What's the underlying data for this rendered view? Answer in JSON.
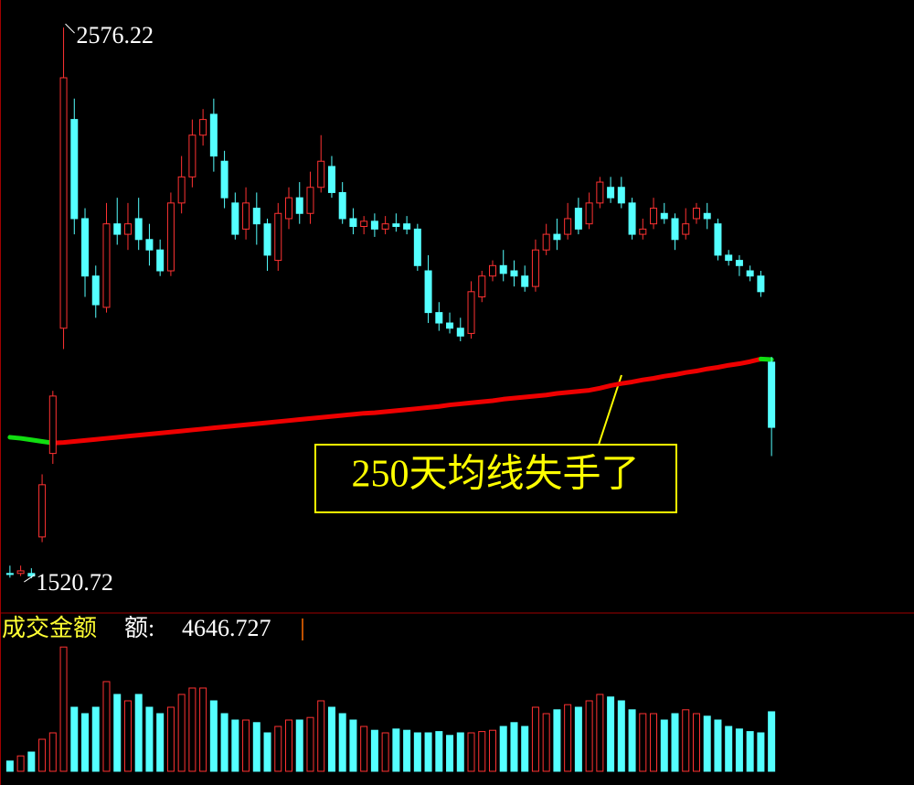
{
  "chart_data": {
    "type": "candlestick",
    "ylim": [
      1463,
      2629
    ],
    "up_color": "#ff3232",
    "down_color": "#54ffff",
    "open": [
      1530,
      1530,
      1530,
      1600,
      1760,
      2000,
      2400,
      2210,
      2100,
      2040,
      2200,
      2180,
      2210,
      2170,
      2150,
      2110,
      2240,
      2290,
      2370,
      2410,
      2320,
      2240,
      2190,
      2230,
      2200,
      2130,
      2210,
      2250,
      2220,
      2270,
      2310,
      2260,
      2210,
      2195,
      2205,
      2190,
      2200,
      2200,
      2190,
      2110,
      2030,
      2010,
      2000,
      1990,
      2060,
      2100,
      2120,
      2110,
      2100,
      2080,
      2150,
      2180,
      2180,
      2230,
      2200,
      2240,
      2270,
      2270,
      2240,
      2180,
      2200,
      2220,
      2210,
      2180,
      2210,
      2220,
      2200,
      2140,
      2130,
      2110,
      2100,
      1935
    ],
    "high": [
      1545,
      1545,
      1540,
      1720,
      1880,
      2576.22,
      2440,
      2230,
      2120,
      2240,
      2250,
      2240,
      2250,
      2200,
      2170,
      2260,
      2330,
      2400,
      2420,
      2440,
      2340,
      2260,
      2270,
      2260,
      2210,
      2240,
      2270,
      2280,
      2300,
      2370,
      2330,
      2280,
      2230,
      2215,
      2220,
      2215,
      2220,
      2215,
      2200,
      2140,
      2050,
      2030,
      2020,
      2090,
      2110,
      2130,
      2150,
      2130,
      2120,
      2170,
      2200,
      2210,
      2240,
      2250,
      2260,
      2290,
      2290,
      2290,
      2250,
      2210,
      2250,
      2240,
      2220,
      2230,
      2240,
      2240,
      2210,
      2150,
      2140,
      2120,
      2110,
      1945
    ],
    "low": [
      1522,
      1525,
      1520.72,
      1590,
      1740,
      1960,
      2180,
      2060,
      2020,
      2030,
      2160,
      2150,
      2150,
      2120,
      2100,
      2100,
      2220,
      2270,
      2350,
      2300,
      2230,
      2170,
      2170,
      2160,
      2110,
      2110,
      2190,
      2200,
      2200,
      2260,
      2250,
      2200,
      2180,
      2180,
      2175,
      2180,
      2185,
      2180,
      2110,
      2010,
      1995,
      1990,
      1975,
      1980,
      2050,
      2090,
      2090,
      2080,
      2070,
      2070,
      2140,
      2150,
      2170,
      2180,
      2190,
      2230,
      2240,
      2230,
      2170,
      2170,
      2190,
      2200,
      2150,
      2170,
      2200,
      2190,
      2130,
      2120,
      2100,
      2090,
      2060,
      1755
    ],
    "close": [
      1528,
      1535,
      1525,
      1700,
      1870,
      2480,
      2210,
      2100,
      2045,
      2200,
      2180,
      2200,
      2170,
      2150,
      2110,
      2240,
      2290,
      2370,
      2400,
      2330,
      2250,
      2180,
      2240,
      2200,
      2140,
      2220,
      2250,
      2220,
      2270,
      2320,
      2260,
      2210,
      2195,
      2205,
      2190,
      2200,
      2195,
      2190,
      2120,
      2030,
      2010,
      2000,
      1985,
      2070,
      2100,
      2120,
      2105,
      2100,
      2080,
      2150,
      2180,
      2170,
      2210,
      2190,
      2240,
      2280,
      2250,
      2240,
      2180,
      2190,
      2230,
      2210,
      2170,
      2200,
      2230,
      2210,
      2140,
      2130,
      2120,
      2100,
      2070,
      1810
    ],
    "ma": {
      "color_up": "#ee0000",
      "color_down": "#11dd11",
      "values": [
        1791,
        1789,
        1786,
        1783,
        1780,
        1781,
        1783,
        1785,
        1787,
        1789,
        1791,
        1793,
        1795,
        1797,
        1799,
        1801,
        1803,
        1805,
        1807,
        1809,
        1811,
        1813,
        1815,
        1817,
        1819,
        1821,
        1823,
        1825,
        1827,
        1829,
        1831,
        1833,
        1835,
        1837,
        1838,
        1840,
        1842,
        1844,
        1846,
        1848,
        1850,
        1853,
        1855,
        1857,
        1859,
        1861,
        1864,
        1866,
        1868,
        1870,
        1872,
        1875,
        1877,
        1879,
        1881,
        1885,
        1890,
        1894,
        1897,
        1901,
        1904,
        1908,
        1911,
        1915,
        1918,
        1922,
        1925,
        1929,
        1932,
        1936,
        1941,
        1940
      ]
    },
    "annotation": "250天均线失手了",
    "volume": {
      "title": "成交金额",
      "label": "额:",
      "ylim": [
        0,
        10000
      ],
      "values": [
        800,
        1200,
        1500,
        2500,
        3000,
        9700,
        5000,
        4500,
        5000,
        7000,
        6000,
        5500,
        6000,
        5000,
        4500,
        5000,
        6000,
        6500,
        6500,
        5500,
        4500,
        4000,
        4000,
        3800,
        3000,
        3500,
        4000,
        4000,
        4200,
        5500,
        5000,
        4500,
        4000,
        3500,
        3200,
        3000,
        3300,
        3200,
        3000,
        3000,
        3100,
        2800,
        3000,
        3000,
        3100,
        3200,
        3500,
        3800,
        3500,
        5000,
        4500,
        4800,
        5200,
        5000,
        5500,
        6000,
        5800,
        5500,
        4800,
        4500,
        4500,
        4000,
        4500,
        4800,
        4500,
        4300,
        4000,
        3500,
        3300,
        3100,
        3000,
        4646.727
      ]
    }
  }
}
